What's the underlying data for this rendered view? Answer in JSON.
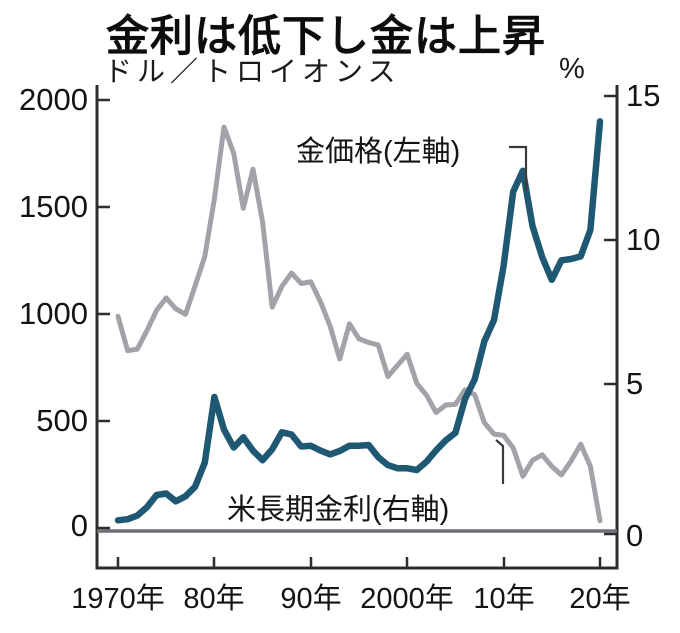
{
  "title": "金利は低下し金は上昇",
  "subtitle": "ドル／トロイオンス",
  "left_axis": {
    "ticks": [
      "2000",
      "1500",
      "1000",
      "500",
      "0"
    ]
  },
  "right_axis": {
    "unit": "%",
    "ticks": [
      "15",
      "10",
      "5",
      "0"
    ]
  },
  "x_axis": {
    "ticks": [
      "1970年",
      "80年",
      "90年",
      "2000年",
      "10年",
      "20年"
    ]
  },
  "chart_data": {
    "type": "line",
    "title": "金利は低下し金は上昇",
    "subtitle": "ドル／トロイオンス",
    "xlabel": "年",
    "x": [
      1970,
      1971,
      1972,
      1973,
      1974,
      1975,
      1976,
      1977,
      1978,
      1979,
      1980,
      1981,
      1982,
      1983,
      1984,
      1985,
      1986,
      1987,
      1988,
      1989,
      1990,
      1991,
      1992,
      1993,
      1994,
      1995,
      1996,
      1997,
      1998,
      1999,
      2000,
      2001,
      2002,
      2003,
      2004,
      2005,
      2006,
      2007,
      2008,
      2009,
      2010,
      2011,
      2012,
      2013,
      2014,
      2015,
      2016,
      2017,
      2018,
      2019,
      2020
    ],
    "x_tick_years": [
      1970,
      1980,
      1990,
      2000,
      2010,
      2020
    ],
    "left_ylim": [
      0,
      2000
    ],
    "right_ylim": [
      0,
      15
    ],
    "left_axis_unit": "ドル／トロイオンス",
    "right_axis_unit": "%",
    "grid": "zero-line-only",
    "legend_position": "inline-annotations",
    "series": [
      {
        "name": "金価格(左軸)",
        "axis": "left",
        "color": "#1e5872",
        "values": [
          36,
          41,
          58,
          97,
          154,
          161,
          125,
          148,
          193,
          306,
          612,
          460,
          376,
          424,
          361,
          317,
          368,
          447,
          437,
          381,
          384,
          362,
          344,
          360,
          384,
          384,
          388,
          331,
          294,
          279,
          279,
          271,
          310,
          363,
          410,
          445,
          603,
          695,
          872,
          972,
          1225,
          1572,
          1669,
          1411,
          1266,
          1160,
          1251,
          1257,
          1269,
          1393,
          1900
        ]
      },
      {
        "name": "米長期金利(右軸)",
        "axis": "right",
        "color": "#a3a2a8",
        "values": [
          7.35,
          6.16,
          6.21,
          6.85,
          7.56,
          7.99,
          7.61,
          7.42,
          8.41,
          9.43,
          11.43,
          13.92,
          13.01,
          11.1,
          12.46,
          10.62,
          7.67,
          8.39,
          8.85,
          8.49,
          8.55,
          7.86,
          7.01,
          5.87,
          7.09,
          6.57,
          6.44,
          6.35,
          5.26,
          5.65,
          6.03,
          5.02,
          4.61,
          4.01,
          4.27,
          4.29,
          4.8,
          4.63,
          3.66,
          3.26,
          3.22,
          2.78,
          1.8,
          2.35,
          2.54,
          2.14,
          1.84,
          2.33,
          2.91,
          2.14,
          0.25
        ]
      }
    ]
  }
}
